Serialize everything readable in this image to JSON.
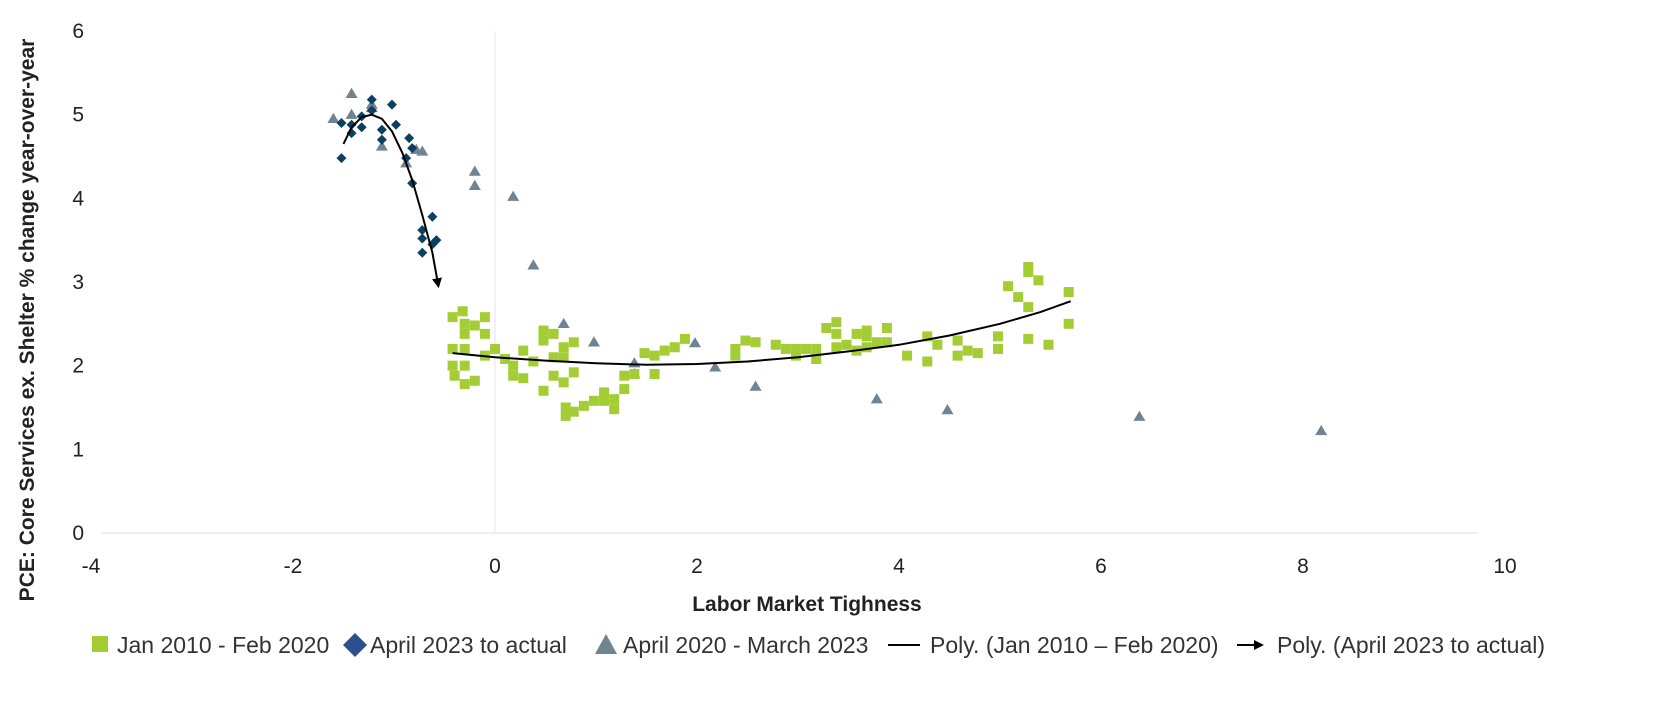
{
  "chart_data": {
    "type": "scatter",
    "title": "",
    "xlabel": "Labor Market Tighness",
    "ylabel": "PCE: Core Services ex. Shelter % change year-over-year",
    "xlim": [
      -4,
      10
    ],
    "ylim": [
      0,
      6
    ],
    "x_ticks": [
      "-4",
      "-2",
      "0",
      "2",
      "4",
      "6",
      "8",
      "10"
    ],
    "y_ticks": [
      "0",
      "1",
      "2",
      "3",
      "4",
      "5",
      "6"
    ],
    "grid": false,
    "legend_position": "bottom",
    "colors": {
      "green": "#a4cd35",
      "navy": "#0d3f61",
      "gray": "#6f8490",
      "legend_navy": "#2b4f8f",
      "line": "#000000"
    },
    "series": [
      {
        "name": "Jan 2010 - Feb 2020",
        "marker": "square",
        "points": [
          [
            -0.42,
            2.58
          ],
          [
            -0.42,
            2.2
          ],
          [
            -0.42,
            2.0
          ],
          [
            -0.4,
            1.88
          ],
          [
            -0.32,
            2.65
          ],
          [
            -0.3,
            2.5
          ],
          [
            -0.3,
            2.38
          ],
          [
            -0.3,
            2.2
          ],
          [
            -0.3,
            2.0
          ],
          [
            -0.3,
            1.78
          ],
          [
            -0.2,
            2.48
          ],
          [
            -0.2,
            1.82
          ],
          [
            -0.1,
            2.58
          ],
          [
            -0.1,
            2.38
          ],
          [
            -0.1,
            2.12
          ],
          [
            0.0,
            2.2
          ],
          [
            0.1,
            2.08
          ],
          [
            0.18,
            2.0
          ],
          [
            0.18,
            1.88
          ],
          [
            0.28,
            2.18
          ],
          [
            0.28,
            1.85
          ],
          [
            0.38,
            2.05
          ],
          [
            0.48,
            2.42
          ],
          [
            0.48,
            2.3
          ],
          [
            0.48,
            1.7
          ],
          [
            0.58,
            2.38
          ],
          [
            0.58,
            2.1
          ],
          [
            0.58,
            1.88
          ],
          [
            0.68,
            2.22
          ],
          [
            0.68,
            2.1
          ],
          [
            0.68,
            1.8
          ],
          [
            0.7,
            1.5
          ],
          [
            0.7,
            1.4
          ],
          [
            0.78,
            2.28
          ],
          [
            0.78,
            1.92
          ],
          [
            0.78,
            1.45
          ],
          [
            0.88,
            1.52
          ],
          [
            0.98,
            1.58
          ],
          [
            1.08,
            1.68
          ],
          [
            1.08,
            1.58
          ],
          [
            1.18,
            1.6
          ],
          [
            1.18,
            1.48
          ],
          [
            1.28,
            1.88
          ],
          [
            1.28,
            1.72
          ],
          [
            1.38,
            1.9
          ],
          [
            1.48,
            2.15
          ],
          [
            1.58,
            2.12
          ],
          [
            1.58,
            1.9
          ],
          [
            1.68,
            2.18
          ],
          [
            1.78,
            2.22
          ],
          [
            1.88,
            2.32
          ],
          [
            2.38,
            2.2
          ],
          [
            2.38,
            2.12
          ],
          [
            2.48,
            2.3
          ],
          [
            2.58,
            2.28
          ],
          [
            2.78,
            2.25
          ],
          [
            2.88,
            2.2
          ],
          [
            2.98,
            2.2
          ],
          [
            2.98,
            2.12
          ],
          [
            3.08,
            2.2
          ],
          [
            3.18,
            2.2
          ],
          [
            3.18,
            2.08
          ],
          [
            3.28,
            2.45
          ],
          [
            3.38,
            2.52
          ],
          [
            3.38,
            2.38
          ],
          [
            3.38,
            2.22
          ],
          [
            3.48,
            2.25
          ],
          [
            3.58,
            2.38
          ],
          [
            3.58,
            2.18
          ],
          [
            3.68,
            2.42
          ],
          [
            3.68,
            2.35
          ],
          [
            3.68,
            2.22
          ],
          [
            3.78,
            2.28
          ],
          [
            3.88,
            2.28
          ],
          [
            3.88,
            2.45
          ],
          [
            4.08,
            2.12
          ],
          [
            4.28,
            2.35
          ],
          [
            4.28,
            2.05
          ],
          [
            4.38,
            2.25
          ],
          [
            4.58,
            2.3
          ],
          [
            4.58,
            2.12
          ],
          [
            4.68,
            2.18
          ],
          [
            4.78,
            2.15
          ],
          [
            4.98,
            2.35
          ],
          [
            4.98,
            2.2
          ],
          [
            5.08,
            2.95
          ],
          [
            5.18,
            2.82
          ],
          [
            5.28,
            3.18
          ],
          [
            5.28,
            3.12
          ],
          [
            5.28,
            2.7
          ],
          [
            5.28,
            2.32
          ],
          [
            5.38,
            3.02
          ],
          [
            5.48,
            2.25
          ],
          [
            5.68,
            2.88
          ],
          [
            5.68,
            2.5
          ]
        ]
      },
      {
        "name": "April 2023 to actual",
        "marker": "diamond",
        "points": [
          [
            -1.52,
            4.9
          ],
          [
            -1.52,
            4.48
          ],
          [
            -1.42,
            4.78
          ],
          [
            -1.42,
            4.88
          ],
          [
            -1.32,
            4.98
          ],
          [
            -1.32,
            4.85
          ],
          [
            -1.22,
            5.18
          ],
          [
            -1.22,
            5.05
          ],
          [
            -1.12,
            4.82
          ],
          [
            -1.12,
            4.7
          ],
          [
            -1.02,
            5.12
          ],
          [
            -0.98,
            4.88
          ],
          [
            -0.88,
            4.48
          ],
          [
            -0.85,
            4.72
          ],
          [
            -0.82,
            4.6
          ],
          [
            -0.82,
            4.18
          ],
          [
            -0.72,
            3.62
          ],
          [
            -0.72,
            3.52
          ],
          [
            -0.72,
            3.35
          ],
          [
            -0.62,
            3.78
          ],
          [
            -0.62,
            3.45
          ],
          [
            -0.58,
            3.5
          ]
        ]
      },
      {
        "name": "April 2020 - March 2023",
        "marker": "triangle",
        "points": [
          [
            -1.6,
            4.95
          ],
          [
            -1.42,
            5.0
          ],
          [
            -1.42,
            5.25
          ],
          [
            -1.22,
            5.12
          ],
          [
            -1.22,
            5.08
          ],
          [
            -1.12,
            4.62
          ],
          [
            -0.88,
            4.42
          ],
          [
            -0.78,
            4.58
          ],
          [
            -0.72,
            4.56
          ],
          [
            -0.2,
            4.32
          ],
          [
            -0.2,
            4.15
          ],
          [
            0.18,
            4.02
          ],
          [
            0.38,
            3.2
          ],
          [
            0.68,
            2.5
          ],
          [
            0.98,
            2.28
          ],
          [
            1.38,
            2.03
          ],
          [
            1.38,
            1.9
          ],
          [
            1.98,
            2.27
          ],
          [
            2.18,
            1.98
          ],
          [
            2.58,
            1.75
          ],
          [
            3.78,
            1.6
          ],
          [
            4.48,
            1.47
          ],
          [
            6.38,
            1.39
          ],
          [
            8.18,
            1.22
          ]
        ]
      }
    ],
    "trendlines": [
      {
        "name": "Poly. (Jan 2010 – Feb 2020)",
        "style": "line",
        "points": [
          [
            -0.42,
            2.15
          ],
          [
            0.0,
            2.1
          ],
          [
            0.5,
            2.06
          ],
          [
            1.0,
            2.03
          ],
          [
            1.5,
            2.01
          ],
          [
            2.0,
            2.02
          ],
          [
            2.5,
            2.05
          ],
          [
            3.0,
            2.1
          ],
          [
            3.5,
            2.17
          ],
          [
            4.0,
            2.25
          ],
          [
            4.5,
            2.36
          ],
          [
            5.0,
            2.5
          ],
          [
            5.4,
            2.64
          ],
          [
            5.7,
            2.77
          ]
        ]
      },
      {
        "name": "Poly. (April 2023 to actual)",
        "style": "arrow",
        "points": [
          [
            -1.5,
            4.65
          ],
          [
            -1.42,
            4.85
          ],
          [
            -1.32,
            4.97
          ],
          [
            -1.22,
            5.0
          ],
          [
            -1.12,
            4.95
          ],
          [
            -1.02,
            4.8
          ],
          [
            -0.92,
            4.55
          ],
          [
            -0.82,
            4.22
          ],
          [
            -0.72,
            3.8
          ],
          [
            -0.62,
            3.35
          ],
          [
            -0.56,
            2.95
          ]
        ]
      }
    ],
    "legend": [
      {
        "label": "Jan 2010 - Feb 2020",
        "marker": "square"
      },
      {
        "label": "April 2023 to actual",
        "marker": "diamond"
      },
      {
        "label": "April 2020 - March 2023",
        "marker": "triangle"
      },
      {
        "label": "Poly. (Jan 2010 – Feb 2020)",
        "marker": "line"
      },
      {
        "label": "Poly. (April 2023 to actual)",
        "marker": "arrow"
      }
    ]
  }
}
